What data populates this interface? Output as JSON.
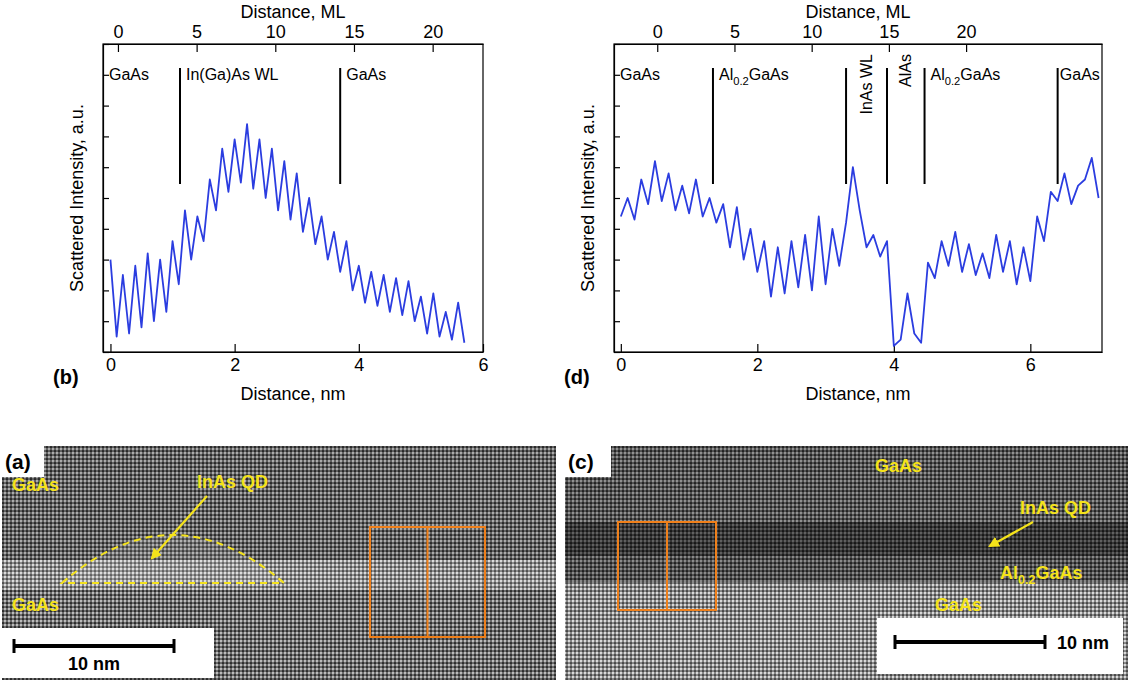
{
  "chart_data": [
    {
      "type": "line",
      "panel_label": "(b)",
      "xlabel": "Distance, nm",
      "x2label": "Distance, ML",
      "ylabel": "Scattered Intensity, a.u.",
      "xlim": [
        -0.12,
        6.0
      ],
      "xticks": [
        0,
        2,
        4,
        6
      ],
      "x2lim": [
        -0.95,
        23.2
      ],
      "x2ticks": [
        0,
        5,
        10,
        15,
        20
      ],
      "ylim": [
        0,
        10
      ],
      "yticks": [
        0,
        1,
        2,
        3,
        4,
        5,
        6,
        7,
        8,
        9,
        10
      ],
      "tick_labels": "x",
      "color": "#2b3de0",
      "boundaries": [
        1.12,
        3.7
      ],
      "regions": [
        "GaAs",
        "In(Ga)As WL",
        "GaAs"
      ],
      "x": [
        0,
        0.1,
        0.2,
        0.3,
        0.4,
        0.5,
        0.6,
        0.7,
        0.8,
        0.9,
        1.0,
        1.1,
        1.2,
        1.3,
        1.4,
        1.5,
        1.6,
        1.7,
        1.8,
        1.9,
        2.0,
        2.1,
        2.2,
        2.3,
        2.4,
        2.5,
        2.6,
        2.7,
        2.8,
        2.9,
        3.0,
        3.1,
        3.2,
        3.3,
        3.4,
        3.5,
        3.6,
        3.7,
        3.8,
        3.9,
        4.0,
        4.1,
        4.2,
        4.3,
        4.4,
        4.5,
        4.6,
        4.7,
        4.8,
        4.9,
        5.0,
        5.1,
        5.2,
        5.3,
        5.4,
        5.5,
        5.6,
        5.7
      ],
      "values": [
        3.0,
        0.5,
        2.5,
        0.6,
        2.8,
        0.8,
        3.2,
        1.0,
        3.0,
        1.3,
        3.6,
        2.2,
        4.6,
        3.0,
        4.4,
        3.6,
        5.6,
        4.6,
        6.6,
        5.2,
        6.9,
        5.5,
        7.4,
        5.3,
        6.9,
        5.0,
        6.6,
        4.6,
        6.2,
        4.3,
        5.8,
        3.9,
        5.0,
        3.5,
        4.4,
        3.0,
        3.9,
        2.6,
        3.6,
        2.0,
        2.8,
        1.6,
        2.6,
        1.5,
        2.5,
        1.3,
        2.4,
        1.2,
        2.3,
        1.0,
        1.8,
        0.6,
        1.9,
        0.5,
        1.3,
        0.4,
        1.6,
        0.3
      ]
    },
    {
      "type": "line",
      "panel_label": "(d)",
      "xlabel": "Distance, nm",
      "x2label": "Distance, ML",
      "ylabel": "Scattered Intensity, a.u.",
      "xlim": [
        -0.1,
        7.05
      ],
      "xticks": [
        0,
        2,
        4,
        6
      ],
      "x2lim": [
        -2.8,
        28.8
      ],
      "x2ticks": [
        0,
        5,
        10,
        15,
        20
      ],
      "ylim": [
        0,
        10
      ],
      "yticks": [
        0,
        1,
        2,
        3,
        4,
        5,
        6,
        7,
        8,
        9,
        10
      ],
      "tick_labels": "x",
      "color": "#2b3de0",
      "boundaries": [
        1.35,
        3.3,
        3.9,
        4.45,
        6.4
      ],
      "regions": [
        "GaAs",
        "Al0.2GaAs",
        "InAs WL",
        "AlAs",
        "Al0.2GaAs",
        "GaAs"
      ],
      "x": [
        0,
        0.1,
        0.2,
        0.3,
        0.4,
        0.5,
        0.6,
        0.7,
        0.8,
        0.9,
        1.0,
        1.1,
        1.2,
        1.3,
        1.4,
        1.5,
        1.6,
        1.7,
        1.8,
        1.9,
        2.0,
        2.1,
        2.2,
        2.3,
        2.4,
        2.5,
        2.6,
        2.7,
        2.8,
        2.9,
        3.0,
        3.1,
        3.2,
        3.3,
        3.4,
        3.5,
        3.6,
        3.7,
        3.8,
        3.9,
        4.0,
        4.1,
        4.2,
        4.3,
        4.4,
        4.5,
        4.6,
        4.7,
        4.8,
        4.9,
        5.0,
        5.1,
        5.2,
        5.3,
        5.4,
        5.5,
        5.6,
        5.7,
        5.8,
        5.9,
        6.0,
        6.1,
        6.2,
        6.3,
        6.4,
        6.5,
        6.6,
        6.7,
        6.8,
        6.9,
        7.0
      ],
      "values": [
        4.4,
        5.0,
        4.3,
        5.6,
        4.8,
        6.2,
        4.9,
        5.8,
        4.6,
        5.4,
        4.5,
        5.6,
        4.4,
        5.0,
        4.2,
        4.8,
        3.4,
        4.7,
        3.0,
        4.0,
        2.6,
        3.6,
        1.8,
        3.4,
        1.9,
        3.6,
        2.1,
        3.8,
        2.0,
        4.4,
        2.2,
        4.0,
        2.8,
        4.2,
        6.0,
        4.6,
        3.4,
        3.8,
        3.1,
        3.6,
        0.2,
        0.4,
        1.9,
        0.6,
        0.3,
        2.9,
        2.4,
        3.6,
        2.8,
        3.9,
        2.6,
        3.5,
        2.5,
        3.2,
        2.4,
        3.8,
        2.6,
        3.6,
        2.2,
        3.4,
        2.3,
        4.4,
        3.6,
        5.2,
        4.9,
        5.8,
        4.8,
        5.4,
        5.6,
        6.3,
        5.0
      ]
    }
  ],
  "images": [
    {
      "panel_label": "(a)",
      "labels": [
        "GaAs",
        "InAs QD",
        "GaAs"
      ],
      "scale_bar": "10 nm"
    },
    {
      "panel_label": "(c)",
      "labels": [
        "GaAs",
        "InAs QD",
        "Al0.2GaAs",
        "GaAs"
      ],
      "scale_bar": "10 nm"
    }
  ]
}
